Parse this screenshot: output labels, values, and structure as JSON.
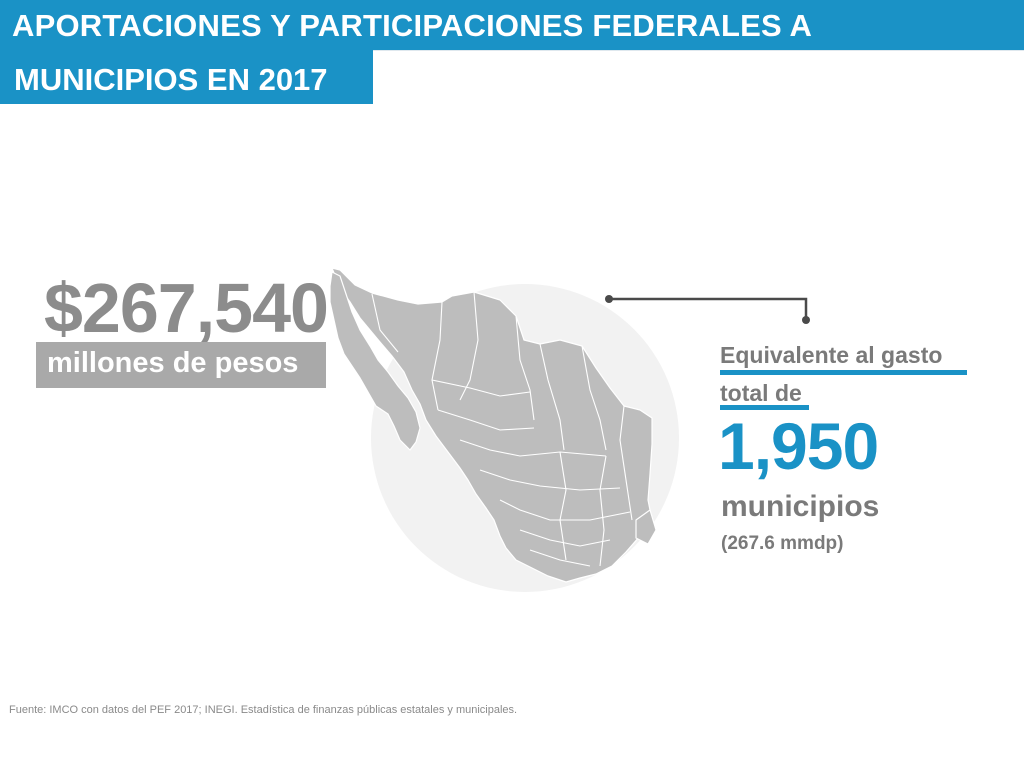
{
  "header": {
    "title_line1": "APORTACIONES Y PARTICIPACIONES FEDERALES A",
    "title_line2": "MUNICIPIOS EN 2017"
  },
  "amount": {
    "value": "$267,540",
    "unit": "millones de pesos"
  },
  "equivalence": {
    "line1": "Equivalente al gasto",
    "line2": "total de",
    "count": "1,950",
    "count_label": "municipios",
    "count_sub": "(267.6 mmdp)"
  },
  "footer": {
    "source": "Fuente: IMCO con datos del PEF 2017; INEGI. Estadística de finanzas públicas estatales y municipales."
  },
  "colors": {
    "accent": "#1a92c6",
    "amount_gray": "#8c8c8c",
    "text_gray": "#7a7a7a",
    "map_gray": "#bdbdbd",
    "circle_gray": "#f2f2f2"
  },
  "icons": {
    "map": "mexico-map-icon",
    "connector": "connector-line-icon"
  }
}
